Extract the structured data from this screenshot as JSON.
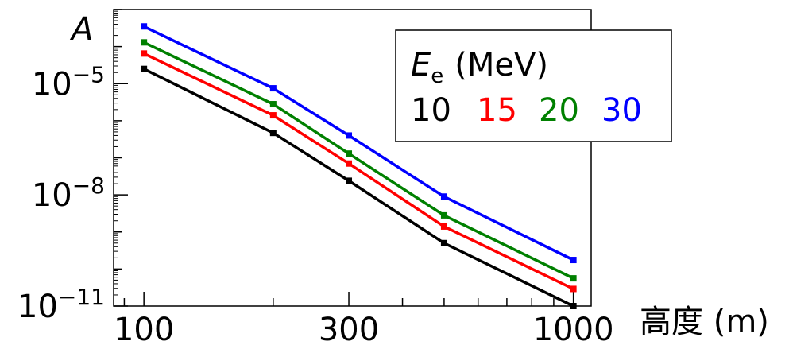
{
  "chart_data": {
    "type": "line",
    "ylabel": "A",
    "xlabel": "高度 (m)",
    "xscale": "log",
    "yscale": "log",
    "xlim": [
      85,
      1100
    ],
    "ylim": [
      1e-11,
      0.001
    ],
    "x_ticks": [
      {
        "value": 100,
        "label": "100"
      },
      {
        "value": 300,
        "label": "300"
      },
      {
        "value": 1000,
        "label": "1000"
      }
    ],
    "y_ticks": [
      {
        "value": 1e-05,
        "base": "10",
        "exp": "−5"
      },
      {
        "value": 1e-08,
        "base": "10",
        "exp": "−8"
      },
      {
        "value": 1e-11,
        "base": "10",
        "exp": "−11"
      }
    ],
    "grid": false,
    "legend": {
      "title_symbol": "E",
      "title_subscript": "e",
      "title_unit": "(MeV)",
      "placement": "top-right"
    },
    "x": [
      100,
      200,
      300,
      500,
      1000
    ],
    "series": [
      {
        "name": "10",
        "color": "#000000",
        "values": [
          2.5e-05,
          4.7e-07,
          2.4e-08,
          5e-10,
          1e-11
        ]
      },
      {
        "name": "15",
        "color": "#ff0000",
        "values": [
          6.5e-05,
          1.4e-06,
          7e-08,
          1.4e-09,
          2.9e-11
        ]
      },
      {
        "name": "20",
        "color": "#008000",
        "values": [
          0.00013,
          2.8e-06,
          1.3e-07,
          2.8e-09,
          5.6e-11
        ]
      },
      {
        "name": "30",
        "color": "#0000ff",
        "values": [
          0.00035,
          7.5e-06,
          4e-07,
          9e-09,
          1.75e-10
        ]
      }
    ]
  }
}
